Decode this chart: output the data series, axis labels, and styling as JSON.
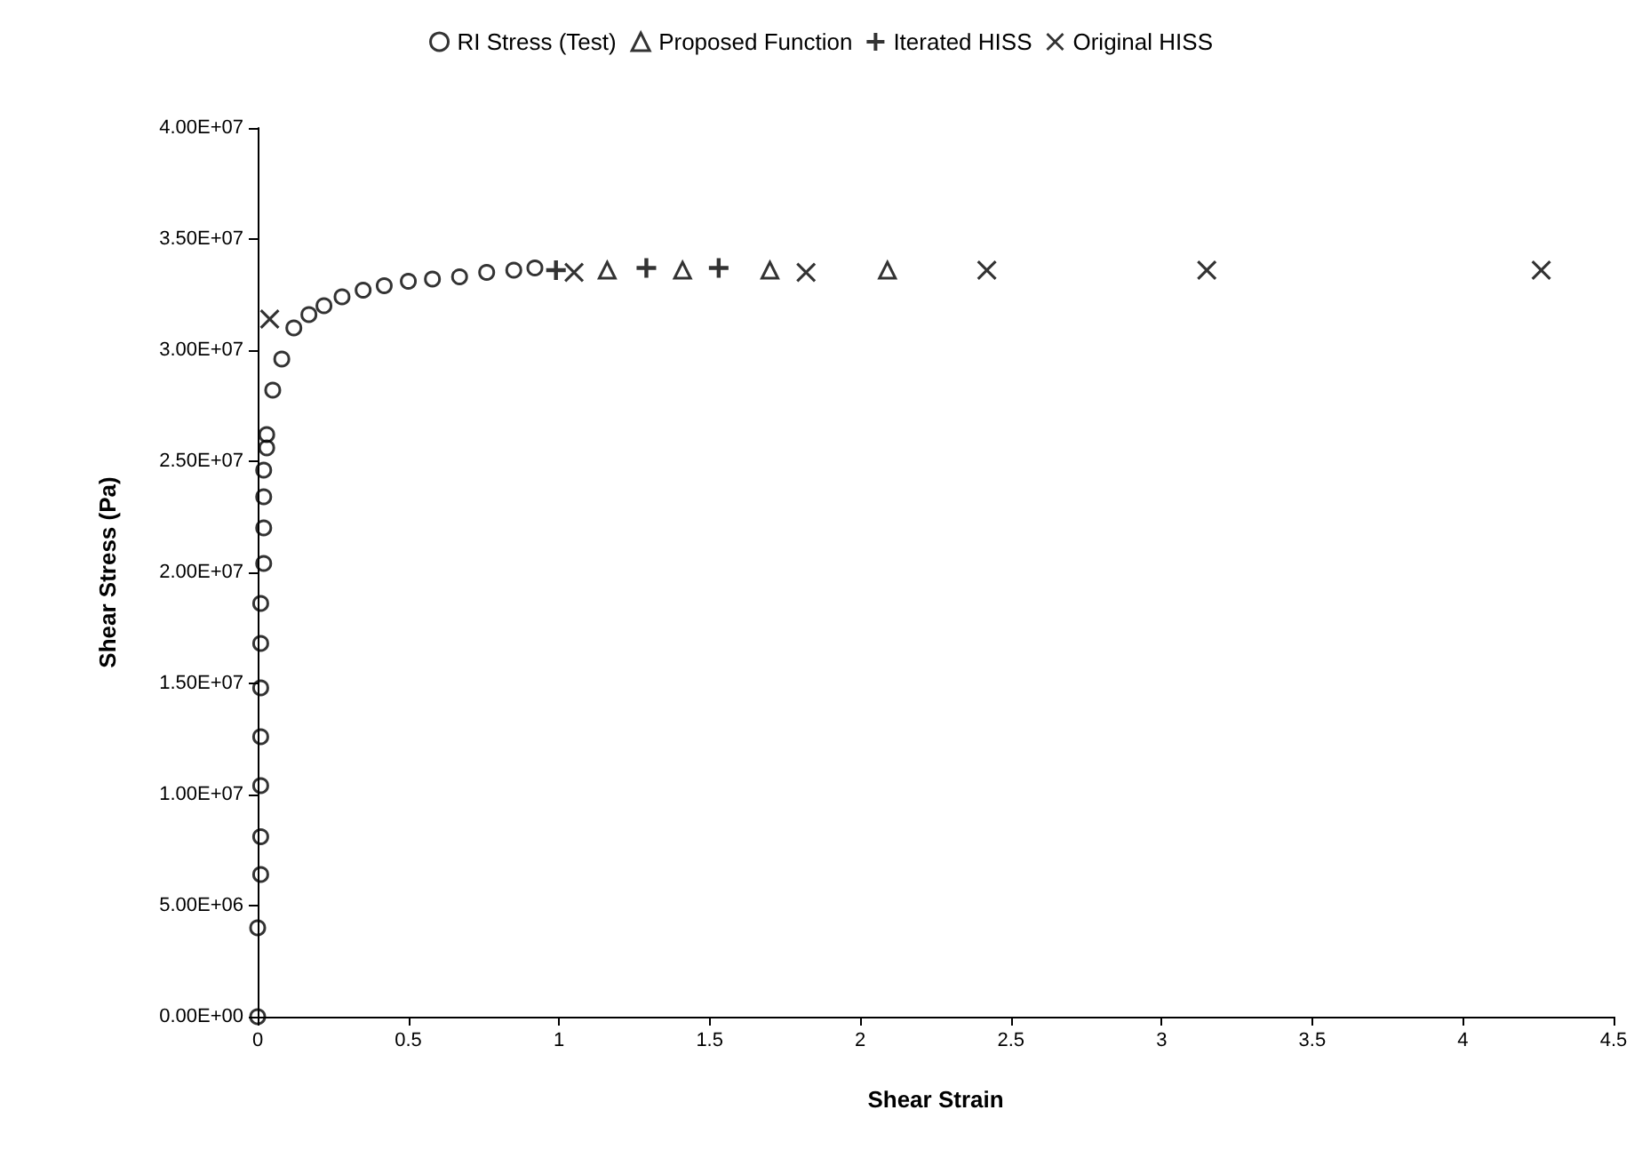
{
  "chart_data": {
    "type": "scatter",
    "xlabel": "Shear Strain",
    "ylabel": "Shear Stress (Pa)",
    "legend": "top",
    "grid": false,
    "xlim": [
      0,
      4.5
    ],
    "xticks": [
      0,
      0.5,
      1,
      1.5,
      2,
      2.5,
      3,
      3.5,
      4,
      4.5
    ],
    "ylim": [
      0,
      40000000
    ],
    "yticks": [
      {
        "value": 0,
        "label": "0.00E+00"
      },
      {
        "value": 5000000,
        "label": "5.00E+06"
      },
      {
        "value": 10000000,
        "label": "1.00E+07"
      },
      {
        "value": 15000000,
        "label": "1.50E+07"
      },
      {
        "value": 20000000,
        "label": "2.00E+07"
      },
      {
        "value": 25000000,
        "label": "2.50E+07"
      },
      {
        "value": 30000000,
        "label": "3.00E+07"
      },
      {
        "value": 35000000,
        "label": "3.50E+07"
      },
      {
        "value": 40000000,
        "label": "4.00E+07"
      }
    ],
    "series": [
      {
        "name": "RI Stress (Test)",
        "color": "#000000",
        "marker": "circle",
        "x": [
          0,
          0,
          0.01,
          0.01,
          0.01,
          0.01,
          0.01,
          0.01,
          0.01,
          0.02,
          0.02,
          0.02,
          0.02,
          0.03,
          0.03,
          0.05,
          0.08,
          0.12,
          0.17,
          0.22,
          0.28,
          0.35,
          0.42,
          0.5,
          0.58,
          0.67,
          0.76,
          0.85,
          0.92
        ],
        "values": [
          0,
          4000000,
          6400000,
          8100000,
          10400000,
          12600000,
          14800000,
          16800000,
          18600000,
          20400000,
          22000000,
          23400000,
          24600000,
          25600000,
          26200000,
          28200000,
          29600000,
          31000000,
          31600000,
          32000000,
          32400000,
          32700000,
          32900000,
          33100000,
          33200000,
          33300000,
          33500000,
          33600000,
          33700000
        ]
      },
      {
        "name": "Proposed Function",
        "color": "#000000",
        "marker": "triangle",
        "x": [
          1.16,
          1.41,
          1.7,
          2.09
        ],
        "values": [
          33600000,
          33600000,
          33600000,
          33600000
        ]
      },
      {
        "name": "Iterated HISS",
        "color": "#000000",
        "x": [
          0.99,
          1.29,
          1.53
        ],
        "values": [
          33600000,
          33700000,
          33700000
        ]
      },
      {
        "name": "Original HISS",
        "color": "#000000",
        "marker": "cross",
        "x": [
          0.04,
          1.05,
          1.82,
          2.42,
          3.15,
          4.26
        ],
        "values": [
          31400000,
          33500000,
          33500000,
          33600000,
          33600000,
          33600000
        ]
      }
    ]
  }
}
